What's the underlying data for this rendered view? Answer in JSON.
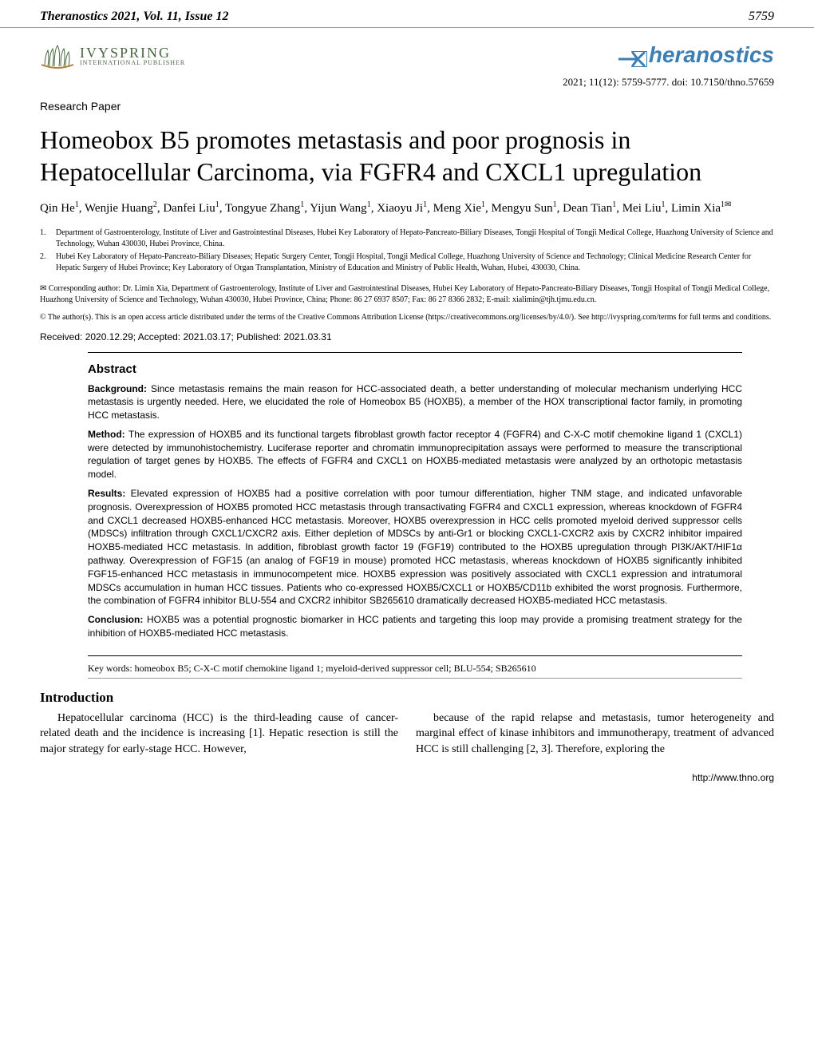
{
  "header": {
    "journal_citation": "Theranostics 2021, Vol. 11, Issue 12",
    "page_number": "5759"
  },
  "publisher": {
    "ivyspring_main": "IVYSPRING",
    "ivyspring_sub": "INTERNATIONAL PUBLISHER",
    "theranostics_label": "heranostics"
  },
  "doi_line": "2021; 11(12): 5759-5777. doi: 10.7150/thno.57659",
  "paper_type": "Research Paper",
  "title": "Homeobox B5 promotes metastasis and poor prognosis in Hepatocellular Carcinoma, via FGFR4 and CXCL1 upregulation",
  "authors_html": "Qin He<sup>1</sup>, Wenjie Huang<sup>2</sup>, Danfei Liu<sup>1</sup>, Tongyue Zhang<sup>1</sup>, Yijun Wang<sup>1</sup>, Xiaoyu Ji<sup>1</sup>, Meng Xie<sup>1</sup>, Mengyu Sun<sup>1</sup>, Dean Tian<sup>1</sup>, Mei Liu<sup>1</sup>, Limin Xia<sup>1✉</sup>",
  "affiliations": [
    {
      "num": "1.",
      "text": "Department of Gastroenterology, Institute of Liver and Gastrointestinal Diseases, Hubei Key Laboratory of Hepato-Pancreato-Biliary Diseases, Tongji Hospital of Tongji Medical College, Huazhong University of Science and Technology, Wuhan 430030, Hubei Province, China."
    },
    {
      "num": "2.",
      "text": "Hubei Key Laboratory of Hepato-Pancreato-Biliary Diseases; Hepatic Surgery Center, Tongji Hospital, Tongji Medical College, Huazhong University of Science and Technology; Clinical Medicine Research Center for Hepatic Surgery of Hubei Province; Key Laboratory of Organ Transplantation, Ministry of Education and Ministry of Public Health, Wuhan, Hubei, 430030, China."
    }
  ],
  "corresponding": "✉ Corresponding author: Dr. Limin Xia, Department of Gastroenterology, Institute of Liver and Gastrointestinal Diseases, Hubei Key Laboratory of Hepato-Pancreato-Biliary Diseases, Tongji Hospital of Tongji Medical College, Huazhong University of Science and Technology, Wuhan 430030, Hubei Province, China; Phone: 86 27 6937 8507; Fax: 86 27 8366 2832; E-mail: xialimin@tjh.tjmu.edu.cn.",
  "license": "© The author(s). This is an open access article distributed under the terms of the Creative Commons Attribution License (https://creativecommons.org/licenses/by/4.0/). See http://ivyspring.com/terms for full terms and conditions.",
  "dates": "Received: 2020.12.29; Accepted: 2021.03.17; Published: 2021.03.31",
  "abstract": {
    "heading": "Abstract",
    "paragraphs": [
      {
        "label": "Background:",
        "text": "Since metastasis remains the main reason for HCC-associated death, a better understanding of molecular mechanism underlying HCC metastasis is urgently needed. Here, we elucidated the role of Homeobox B5 (HOXB5), a member of the HOX transcriptional factor family, in promoting HCC metastasis."
      },
      {
        "label": "Method:",
        "text": "The expression of HOXB5 and its functional targets fibroblast growth factor receptor 4 (FGFR4) and C-X-C motif chemokine ligand 1 (CXCL1) were detected by immunohistochemistry. Luciferase reporter and chromatin immunoprecipitation assays were performed to measure the transcriptional regulation of target genes by HOXB5. The effects of FGFR4 and CXCL1 on HOXB5-mediated metastasis were analyzed by an orthotopic metastasis model."
      },
      {
        "label": "Results:",
        "text": "Elevated expression of HOXB5 had a positive correlation with poor tumour differentiation, higher TNM stage, and indicated unfavorable prognosis. Overexpression of HOXB5 promoted HCC metastasis through transactivating FGFR4 and CXCL1 expression, whereas knockdown of FGFR4 and CXCL1 decreased HOXB5-enhanced HCC metastasis. Moreover, HOXB5 overexpression in HCC cells promoted myeloid derived suppressor cells (MDSCs) infiltration through CXCL1/CXCR2 axis. Either depletion of MDSCs by anti-Gr1 or blocking CXCL1-CXCR2 axis by CXCR2 inhibitor impaired HOXB5-mediated HCC metastasis. In addition, fibroblast growth factor 19 (FGF19) contributed to the HOXB5 upregulation through PI3K/AKT/HIF1α pathway. Overexpression of FGF15 (an analog of FGF19 in mouse) promoted HCC metastasis, whereas knockdown of HOXB5 significantly inhibited FGF15-enhanced HCC metastasis in immunocompetent mice. HOXB5 expression was positively associated with CXCL1 expression and intratumoral MDSCs accumulation in human HCC tissues. Patients who co-expressed HOXB5/CXCL1 or HOXB5/CD11b exhibited the worst prognosis. Furthermore, the combination of FGFR4 inhibitor BLU-554 and CXCR2 inhibitor SB265610 dramatically decreased HOXB5-mediated HCC metastasis."
      },
      {
        "label": "Conclusion:",
        "text": "HOXB5 was a potential prognostic biomarker in HCC patients and targeting this loop may provide a promising treatment strategy for the inhibition of HOXB5-mediated HCC metastasis."
      }
    ]
  },
  "keywords": "Key words: homeobox B5; C-X-C motif chemokine ligand 1; myeloid-derived suppressor cell; BLU-554; SB265610",
  "introduction": {
    "heading": "Introduction",
    "col1": "Hepatocellular carcinoma (HCC) is the third-leading cause of cancer-related death and the incidence is increasing [1]. Hepatic resection is still the major strategy for early-stage HCC. However,",
    "col2": "because of the rapid relapse and metastasis, tumor heterogeneity and marginal effect of kinase inhibitors and immunotherapy, treatment of advanced HCC is still challenging [2, 3]. Therefore, exploring the"
  },
  "footer_url": "http://www.thno.org",
  "colors": {
    "ivyspring_green": "#4a6741",
    "theranostics_blue": "#3b7fb5",
    "text": "#000000",
    "background": "#ffffff",
    "rule_gray": "#999999"
  }
}
